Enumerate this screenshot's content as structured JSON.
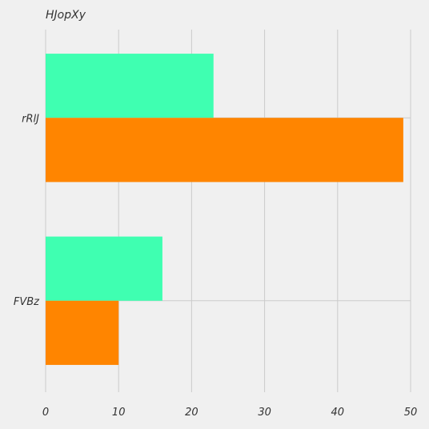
{
  "chart_data": {
    "type": "bar",
    "orientation": "horizontal",
    "title": "HJopXy",
    "xlabel": "",
    "ylabel": "",
    "categories": [
      "rRlJ",
      "FVBz"
    ],
    "series": [
      {
        "values": [
          23,
          16
        ],
        "color": "#3fffb1"
      },
      {
        "values": [
          49,
          10
        ],
        "color": "#ff8500"
      }
    ],
    "xlim": [
      0,
      50
    ],
    "x_ticks": [
      0,
      10,
      20,
      30,
      40,
      50
    ],
    "grid": true,
    "legend": "none"
  },
  "colors": {
    "background": "#f0f0f0",
    "grid": "#cbcbcb",
    "text": "#333333"
  }
}
